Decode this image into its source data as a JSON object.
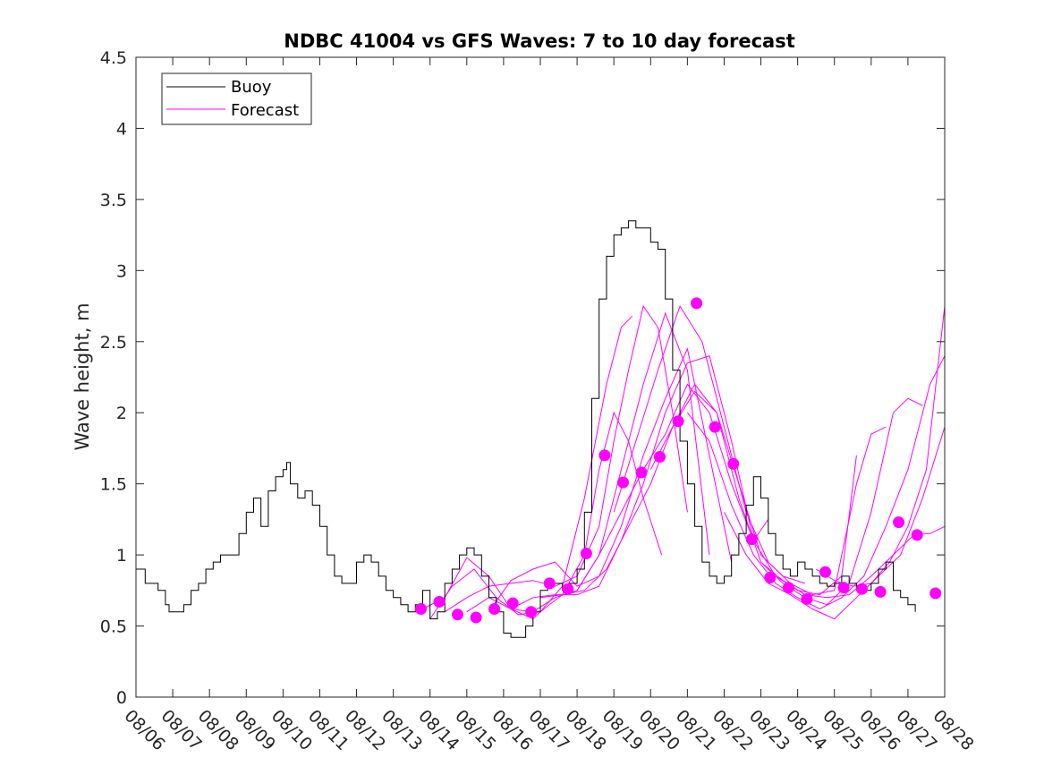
{
  "chart_data": {
    "type": "line",
    "title": "NDBC 41004 vs GFS Waves: 7 to 10 day forecast",
    "xlabel": "",
    "ylabel": "Wave height, m",
    "xlim": [
      0,
      22
    ],
    "ylim": [
      0,
      4.5
    ],
    "yticks": [
      0,
      0.5,
      1,
      1.5,
      2,
      2.5,
      3,
      3.5,
      4,
      4.5
    ],
    "ytick_labels": [
      "0",
      "0.5",
      "1",
      "1.5",
      "2",
      "2.5",
      "3",
      "3.5",
      "4",
      "4.5"
    ],
    "xtick_labels": [
      "08/06",
      "08/07",
      "08/08",
      "08/09",
      "08/10",
      "08/11",
      "08/12",
      "08/13",
      "08/14",
      "08/15",
      "08/16",
      "08/17",
      "08/18",
      "08/19",
      "08/20",
      "08/21",
      "08/22",
      "08/23",
      "08/24",
      "08/25",
      "08/26",
      "08/27",
      "08/28"
    ],
    "legend": {
      "position": "top-left",
      "entries": [
        {
          "label": "Buoy",
          "color": "#000000"
        },
        {
          "label": "Forecast",
          "color": "#ff00ff"
        }
      ]
    },
    "buoy": {
      "name": "Buoy",
      "color": "#000000",
      "x": [
        0,
        0.25,
        0.4,
        0.6,
        0.8,
        0.9,
        1.0,
        1.3,
        1.5,
        1.7,
        1.9,
        2.1,
        2.3,
        2.5,
        2.8,
        3.0,
        3.2,
        3.4,
        3.6,
        3.8,
        4.0,
        4.1,
        4.2,
        4.4,
        4.6,
        4.8,
        5.0,
        5.2,
        5.4,
        5.6,
        5.8,
        6.0,
        6.2,
        6.4,
        6.6,
        6.8,
        7.0,
        7.2,
        7.4,
        7.6,
        7.8,
        8.0,
        8.2,
        8.4,
        8.6,
        8.8,
        9.0,
        9.2,
        9.4,
        9.6,
        9.8,
        10.0,
        10.2,
        10.4,
        10.6,
        10.8,
        11.0,
        11.2,
        11.4,
        11.6,
        11.8,
        12.0,
        12.2,
        12.4,
        12.6,
        12.8,
        13.0,
        13.2,
        13.4,
        13.6,
        13.8,
        14.0,
        14.2,
        14.4,
        14.6,
        14.8,
        15.0,
        15.2,
        15.4,
        15.6,
        15.8,
        16.0,
        16.2,
        16.4,
        16.6,
        16.8,
        17.0,
        17.2,
        17.4,
        17.6,
        17.8,
        18.0,
        18.2,
        18.4,
        18.6,
        18.8,
        19.0,
        19.2,
        19.4,
        19.6,
        19.8,
        20.0,
        20.2,
        20.4,
        20.6,
        20.8,
        21.0,
        21.2
      ],
      "values": [
        0.9,
        0.8,
        0.8,
        0.75,
        0.65,
        0.6,
        0.6,
        0.65,
        0.75,
        0.8,
        0.9,
        0.95,
        1.0,
        1.0,
        1.15,
        1.3,
        1.4,
        1.2,
        1.45,
        1.55,
        1.6,
        1.65,
        1.5,
        1.4,
        1.45,
        1.35,
        1.2,
        1.0,
        0.85,
        0.8,
        0.8,
        0.95,
        1.0,
        0.95,
        0.85,
        0.75,
        0.7,
        0.65,
        0.6,
        0.65,
        0.75,
        0.55,
        0.6,
        0.8,
        0.9,
        1.0,
        1.05,
        1.0,
        0.85,
        0.7,
        0.6,
        0.45,
        0.42,
        0.42,
        0.5,
        0.6,
        0.75,
        0.8,
        0.8,
        0.75,
        0.8,
        0.9,
        1.3,
        2.1,
        2.8,
        3.1,
        3.25,
        3.3,
        3.35,
        3.3,
        3.3,
        3.2,
        3.15,
        2.8,
        2.3,
        1.8,
        1.5,
        1.2,
        0.95,
        0.85,
        0.8,
        0.85,
        1.0,
        1.15,
        1.35,
        1.55,
        1.4,
        1.15,
        1.0,
        0.9,
        0.85,
        0.95,
        0.9,
        0.85,
        0.8,
        0.78,
        0.8,
        0.85,
        0.8,
        0.75,
        0.75,
        0.8,
        0.9,
        0.95,
        0.75,
        0.7,
        0.65,
        0.6
      ]
    },
    "forecast_lines": [
      {
        "x": [
          7.8,
          8.4,
          9.0,
          9.6,
          10.2,
          10.8,
          11.0,
          11.6,
          12.2,
          12.8,
          13.2,
          13.5
        ],
        "values": [
          0.62,
          0.7,
          0.98,
          0.85,
          0.62,
          0.55,
          0.6,
          0.78,
          1.4,
          2.2,
          2.6,
          2.68
        ]
      },
      {
        "x": [
          8.0,
          8.6,
          9.2,
          9.8,
          10.4,
          11.0,
          11.6,
          12.2,
          12.6,
          13.0,
          13.4,
          13.8,
          14.3
        ],
        "values": [
          0.55,
          0.78,
          0.9,
          0.7,
          0.58,
          0.6,
          0.72,
          1.0,
          1.6,
          2.0,
          1.8,
          1.4,
          1.0
        ]
      },
      {
        "x": [
          8.4,
          9.0,
          9.6,
          10.2,
          10.8,
          11.4,
          12.0,
          12.6,
          13.0,
          13.4,
          13.8,
          14.2,
          14.6,
          15.0
        ],
        "values": [
          0.6,
          0.7,
          0.78,
          0.8,
          0.82,
          0.78,
          0.85,
          1.2,
          1.8,
          2.3,
          2.75,
          2.6,
          2.0,
          1.3
        ]
      },
      {
        "x": [
          9.0,
          9.6,
          10.2,
          10.8,
          11.4,
          12.0,
          12.6,
          13.2,
          13.8,
          14.4,
          15.0,
          15.6
        ],
        "values": [
          0.6,
          0.7,
          0.62,
          0.6,
          0.7,
          0.75,
          1.0,
          1.6,
          2.2,
          2.7,
          2.3,
          1.0
        ]
      },
      {
        "x": [
          9.6,
          10.2,
          10.8,
          11.4,
          12.0,
          12.6,
          13.2,
          13.8,
          14.4,
          15.0,
          15.6,
          16.2
        ],
        "values": [
          0.6,
          0.82,
          0.9,
          0.95,
          0.78,
          0.85,
          1.2,
          1.7,
          2.1,
          2.45,
          1.7,
          0.95
        ]
      },
      {
        "x": [
          10.2,
          10.8,
          11.4,
          12.0,
          12.6,
          13.2,
          13.8,
          14.4,
          15.0,
          15.6,
          16.2,
          16.8,
          17.2
        ],
        "values": [
          0.62,
          0.7,
          0.72,
          0.72,
          0.78,
          1.1,
          1.5,
          2.0,
          2.35,
          2.4,
          1.8,
          1.1,
          1.25
        ]
      },
      {
        "x": [
          11.0,
          11.6,
          12.2,
          12.8,
          13.4,
          14.0,
          14.6,
          15.2,
          15.8,
          16.4,
          17.0,
          17.6,
          18.2
        ],
        "values": [
          0.7,
          0.72,
          0.75,
          0.9,
          1.2,
          1.5,
          1.9,
          2.15,
          2.0,
          1.5,
          1.0,
          0.85,
          0.8
        ]
      },
      {
        "x": [
          12.0,
          12.6,
          13.2,
          13.8,
          14.4,
          15.0,
          15.6,
          16.2,
          16.8,
          17.4,
          18.0,
          18.6,
          19.2,
          19.6
        ],
        "values": [
          0.75,
          1.0,
          1.3,
          1.6,
          1.85,
          2.2,
          2.0,
          1.5,
          1.1,
          0.85,
          0.75,
          0.72,
          0.85,
          1.7
        ]
      },
      {
        "x": [
          13.0,
          13.6,
          14.2,
          14.8,
          15.4,
          16.0,
          16.6,
          17.2,
          17.8,
          18.4,
          19.0,
          19.6,
          20.0,
          20.4
        ],
        "values": [
          1.3,
          1.8,
          2.3,
          2.75,
          2.5,
          1.9,
          1.3,
          0.95,
          0.8,
          0.72,
          0.75,
          1.5,
          1.85,
          1.9
        ]
      },
      {
        "x": [
          14.0,
          14.6,
          15.2,
          15.8,
          16.4,
          17.0,
          17.6,
          18.2,
          18.8,
          19.4,
          20.0,
          20.6,
          21.0,
          21.4
        ],
        "values": [
          1.6,
          1.9,
          2.2,
          2.0,
          1.4,
          0.95,
          0.8,
          0.7,
          0.65,
          0.8,
          1.3,
          2.0,
          2.1,
          2.05
        ]
      },
      {
        "x": [
          15.0,
          15.6,
          16.2,
          16.8,
          17.4,
          18.0,
          18.6,
          19.2,
          19.8,
          20.4,
          21.0,
          21.6,
          22.0
        ],
        "values": [
          2.0,
          1.8,
          1.35,
          1.0,
          0.8,
          0.7,
          0.62,
          0.7,
          0.85,
          1.2,
          1.6,
          2.2,
          2.4
        ]
      },
      {
        "x": [
          16.0,
          16.6,
          17.2,
          17.8,
          18.4,
          19.0,
          19.6,
          20.2,
          20.8,
          21.4,
          22.0
        ],
        "values": [
          1.3,
          1.0,
          0.8,
          0.72,
          0.62,
          0.55,
          0.7,
          0.85,
          1.0,
          1.4,
          1.9
        ]
      },
      {
        "x": [
          17.0,
          17.6,
          18.2,
          18.8,
          19.4,
          20.0,
          20.6,
          21.2,
          21.6,
          22.0
        ],
        "values": [
          0.95,
          0.82,
          0.72,
          0.7,
          0.72,
          0.85,
          1.0,
          1.15,
          1.15,
          1.2
        ]
      },
      {
        "x": [
          18.5,
          19.0,
          19.5,
          20.0,
          20.5,
          21.0,
          21.5,
          22.0
        ],
        "values": [
          0.9,
          0.82,
          0.78,
          0.8,
          0.95,
          1.2,
          1.6,
          2.75
        ]
      }
    ],
    "forecast_points": {
      "name": "Forecast",
      "color": "#ff00ff",
      "x": [
        7.75,
        8.25,
        8.75,
        9.25,
        9.75,
        10.25,
        10.75,
        11.25,
        11.75,
        12.25,
        12.75,
        13.25,
        13.75,
        14.25,
        14.75,
        15.25,
        15.75,
        16.25,
        16.75,
        17.25,
        17.75,
        18.25,
        18.75,
        19.25,
        19.75,
        20.25,
        20.75,
        21.25,
        21.75
      ],
      "values": [
        0.62,
        0.67,
        0.58,
        0.56,
        0.62,
        0.66,
        0.6,
        0.8,
        0.76,
        1.01,
        1.7,
        1.51,
        1.58,
        1.69,
        1.94,
        2.77,
        1.9,
        1.64,
        1.11,
        0.84,
        0.77,
        0.69,
        0.88,
        0.77,
        0.76,
        0.74,
        1.23,
        1.14,
        0.73
      ]
    }
  }
}
